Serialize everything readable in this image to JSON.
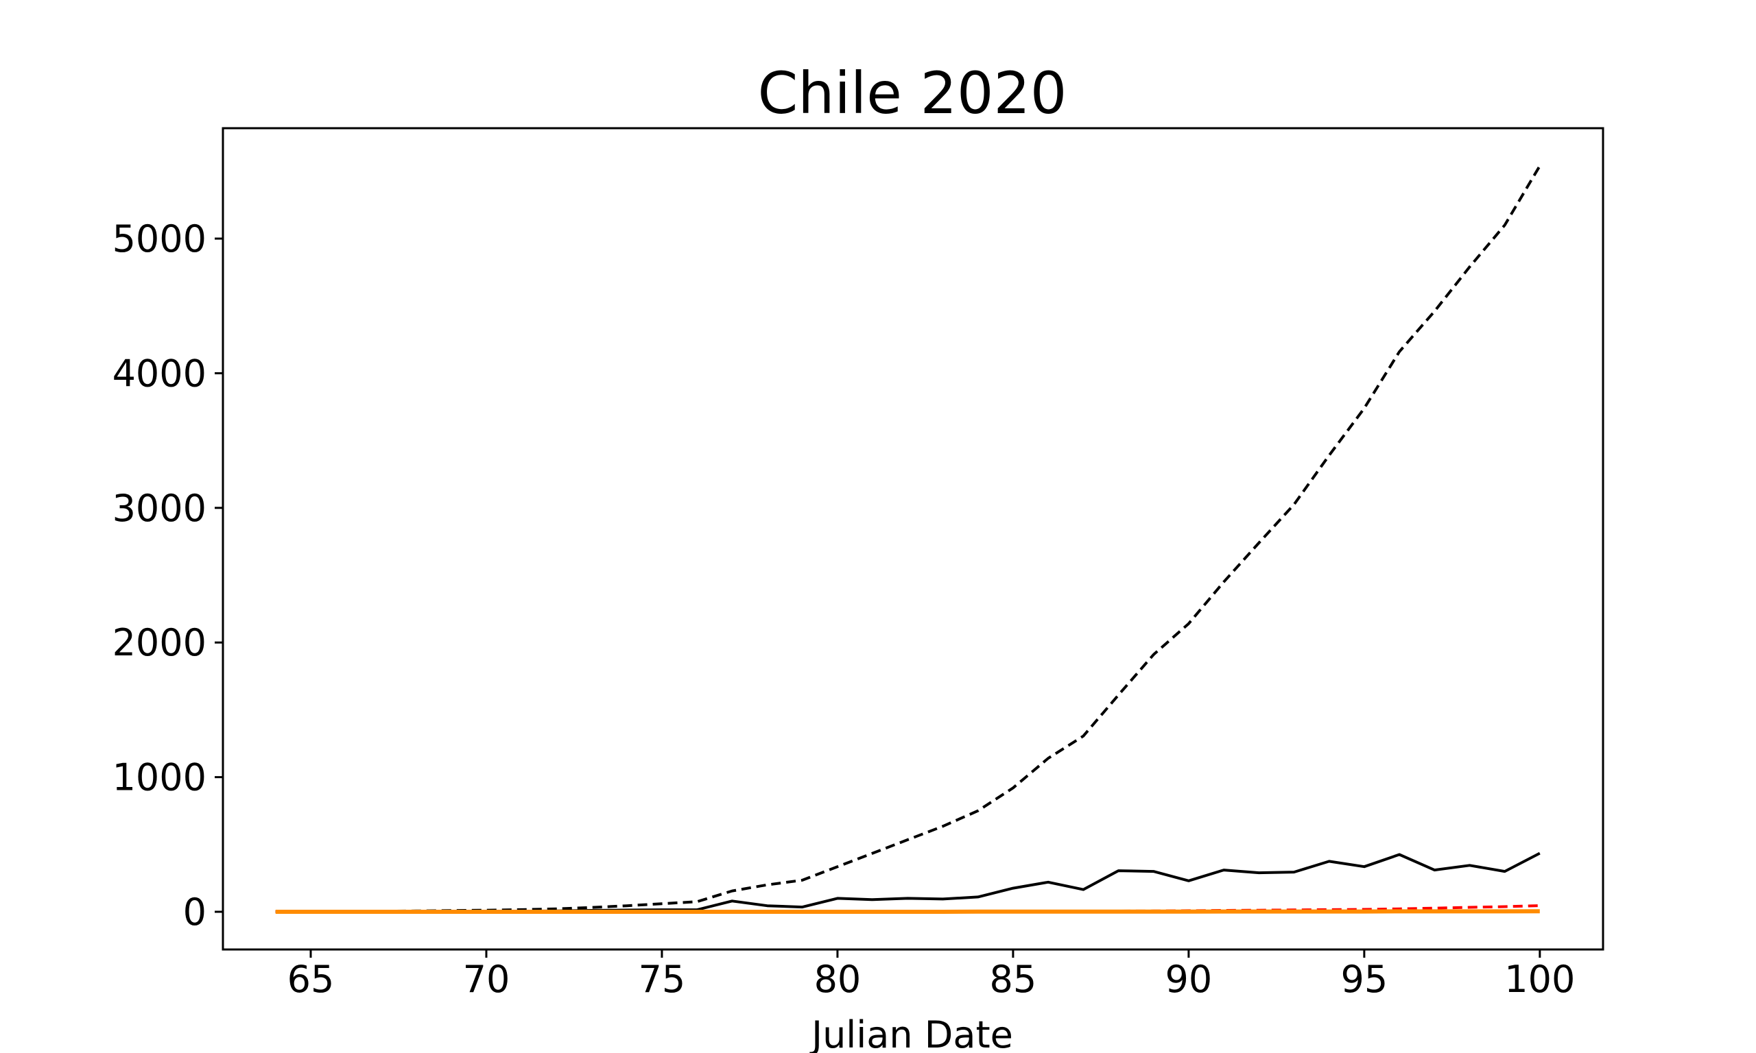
{
  "chart_data": {
    "type": "line",
    "title": "Chile 2020",
    "xlabel": "Julian Date",
    "ylabel": "",
    "xlim": [
      62.5,
      101.8
    ],
    "ylim": [
      -280,
      5820
    ],
    "xticks": [
      65,
      70,
      75,
      80,
      85,
      90,
      95,
      100
    ],
    "yticks": [
      0,
      1000,
      2000,
      3000,
      4000,
      5000
    ],
    "grid": false,
    "legend": "none",
    "x": [
      64,
      65,
      66,
      67,
      68,
      69,
      70,
      71,
      72,
      73,
      74,
      75,
      76,
      77,
      78,
      79,
      80,
      81,
      82,
      83,
      84,
      85,
      86,
      87,
      88,
      89,
      90,
      91,
      92,
      93,
      94,
      95,
      96,
      97,
      98,
      99,
      100
    ],
    "series": [
      {
        "color": "#000000",
        "style": "dashed",
        "values": [
          1,
          1,
          2,
          4,
          6,
          9,
          12,
          16,
          22,
          32,
          45,
          60,
          75,
          155,
          200,
          235,
          335,
          435,
          535,
          635,
          750,
          920,
          1140,
          1305,
          1610,
          1910,
          2140,
          2450,
          2740,
          3025,
          3390,
          3740,
          4160,
          4460,
          4790,
          5100,
          5540
        ]
      },
      {
        "color": "#000000",
        "style": "solid",
        "values": [
          1,
          0,
          1,
          2,
          2,
          3,
          3,
          4,
          6,
          10,
          13,
          15,
          15,
          80,
          45,
          35,
          100,
          90,
          100,
          95,
          110,
          175,
          220,
          165,
          305,
          300,
          230,
          310,
          290,
          295,
          375,
          335,
          425,
          310,
          345,
          300,
          435
        ]
      },
      {
        "color": "#ff0000",
        "style": "dashed",
        "values": [
          0,
          0,
          0,
          0,
          0,
          0,
          0,
          0,
          0,
          0,
          0,
          0,
          0,
          0,
          0,
          0,
          0,
          0,
          1,
          1,
          1,
          2,
          3,
          4,
          5,
          6,
          8,
          10,
          12,
          14,
          16,
          18,
          22,
          27,
          33,
          38,
          46
        ]
      },
      {
        "color": "#ff8c00",
        "style": "solid",
        "values": [
          0,
          0,
          0,
          0,
          0,
          0,
          0,
          0,
          0,
          0,
          0,
          0,
          0,
          0,
          0,
          0,
          0,
          0,
          0,
          0,
          1,
          1,
          1,
          1,
          1,
          1,
          1,
          2,
          2,
          2,
          2,
          2,
          3,
          3,
          3,
          3,
          4
        ]
      }
    ]
  }
}
